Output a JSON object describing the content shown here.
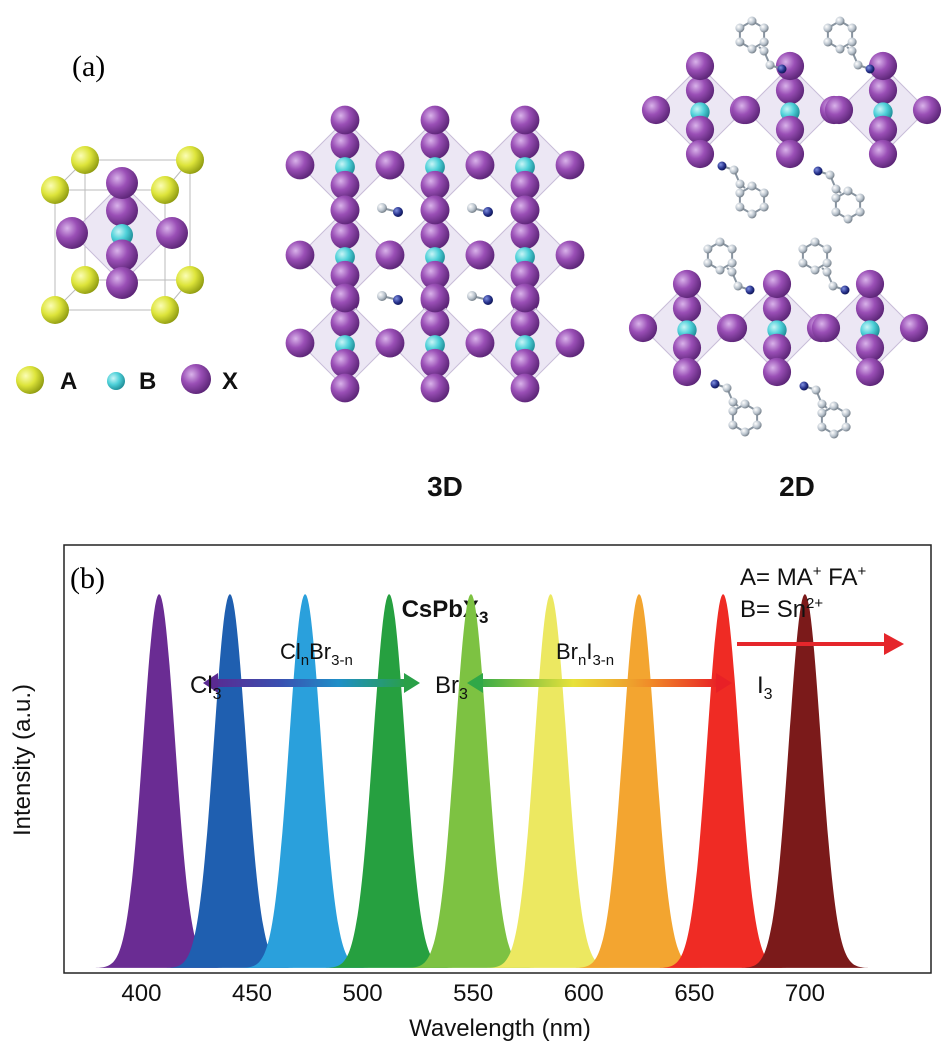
{
  "panel_a": {
    "label": "(a)",
    "legend": [
      {
        "text": "A",
        "color": "#e0e63a"
      },
      {
        "text": "B",
        "color": "#4fd1d9"
      },
      {
        "text": "X",
        "color": "#9a4fb6"
      }
    ],
    "labels": {
      "three_d": "3D",
      "two_d": "2D"
    },
    "colors": {
      "octahedron": "#e6dff0",
      "molecule_c": "#b8c2cc",
      "molecule_n": "#27328c"
    }
  },
  "chart_data": {
    "type": "area",
    "panel_label": "(b)",
    "title": "CsPbX",
    "title_sub": "3",
    "xlabel": "Wavelength (nm)",
    "ylabel": "Intensity (a.u.)",
    "xticks": [
      "400",
      "450",
      "500",
      "550",
      "600",
      "650",
      "700"
    ],
    "xlim": [
      365,
      757
    ],
    "ylim": [
      0,
      1
    ],
    "grid": false,
    "peaks": [
      {
        "center": 408,
        "fwhm": 17,
        "height": 0.93,
        "color": "#6a2c93"
      },
      {
        "center": 440,
        "fwhm": 17,
        "height": 0.93,
        "color": "#1f5fb0"
      },
      {
        "center": 474,
        "fwhm": 17,
        "height": 0.93,
        "color": "#2aa0dc"
      },
      {
        "center": 512,
        "fwhm": 17,
        "height": 0.93,
        "color": "#26a040"
      },
      {
        "center": 549,
        "fwhm": 17,
        "height": 0.93,
        "color": "#7dc242"
      },
      {
        "center": 585,
        "fwhm": 17,
        "height": 0.93,
        "color": "#ece861"
      },
      {
        "center": 625,
        "fwhm": 17,
        "height": 0.93,
        "color": "#f3a530"
      },
      {
        "center": 663,
        "fwhm": 17,
        "height": 0.93,
        "color": "#ef2b24"
      },
      {
        "center": 700,
        "fwhm": 17,
        "height": 0.93,
        "color": "#7b1a1a"
      }
    ],
    "annotations": {
      "cl3": "Cl",
      "cl3_sub": "3",
      "br3": "Br",
      "br3_sub": "3",
      "i3": "I",
      "i3_sub": "3",
      "clbr_part1": "Cl",
      "clbr_sub1": "n",
      "clbr_part2": "Br",
      "clbr_sub2": "3-n",
      "bri_part1": "Br",
      "bri_sub1": "n",
      "bri_part2": "I",
      "bri_sub2": "3-n",
      "a_line": "A= MA",
      "a_sup1": "+",
      "a_mid": " FA",
      "a_sup2": "+",
      "b_line": "B= Sn",
      "b_sup": "2+"
    },
    "arrow_colors": {
      "clbr": [
        "#5a2a91",
        "#3a4fb0",
        "#1f8fc8",
        "#2aa048"
      ],
      "bri": [
        "#30a848",
        "#e8e23a",
        "#f08a28",
        "#e82026"
      ],
      "shift": "#e5262b"
    }
  }
}
